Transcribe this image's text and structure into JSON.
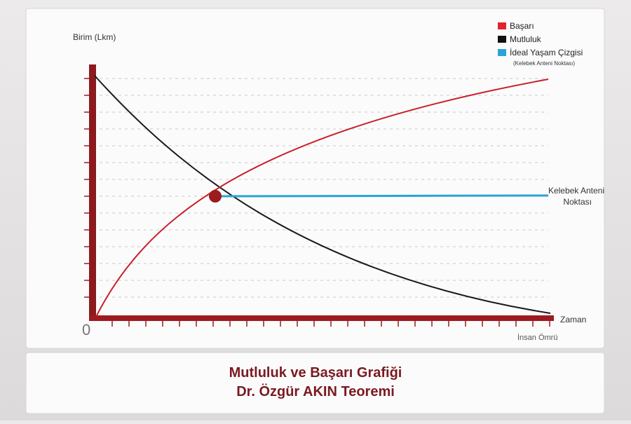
{
  "legend": {
    "items": [
      {
        "label": "Başarı"
      },
      {
        "label": "Mutluluk"
      },
      {
        "label": "İdeal Yaşam Çizgisi",
        "note": "(Kelebek Anteni Noktası)"
      }
    ]
  },
  "axes": {
    "y_label": "Birim (Lkm)",
    "x_label": "Zaman",
    "x_end_label": "İnsan Ömrü",
    "origin": "0"
  },
  "annotation": {
    "lines": [
      "Kelebek Anteni",
      "Noktası"
    ]
  },
  "caption": {
    "lines": [
      "Mutluluk ve Başarı Grafiği",
      "Dr. Özgür AKIN Teoremi"
    ]
  }
}
